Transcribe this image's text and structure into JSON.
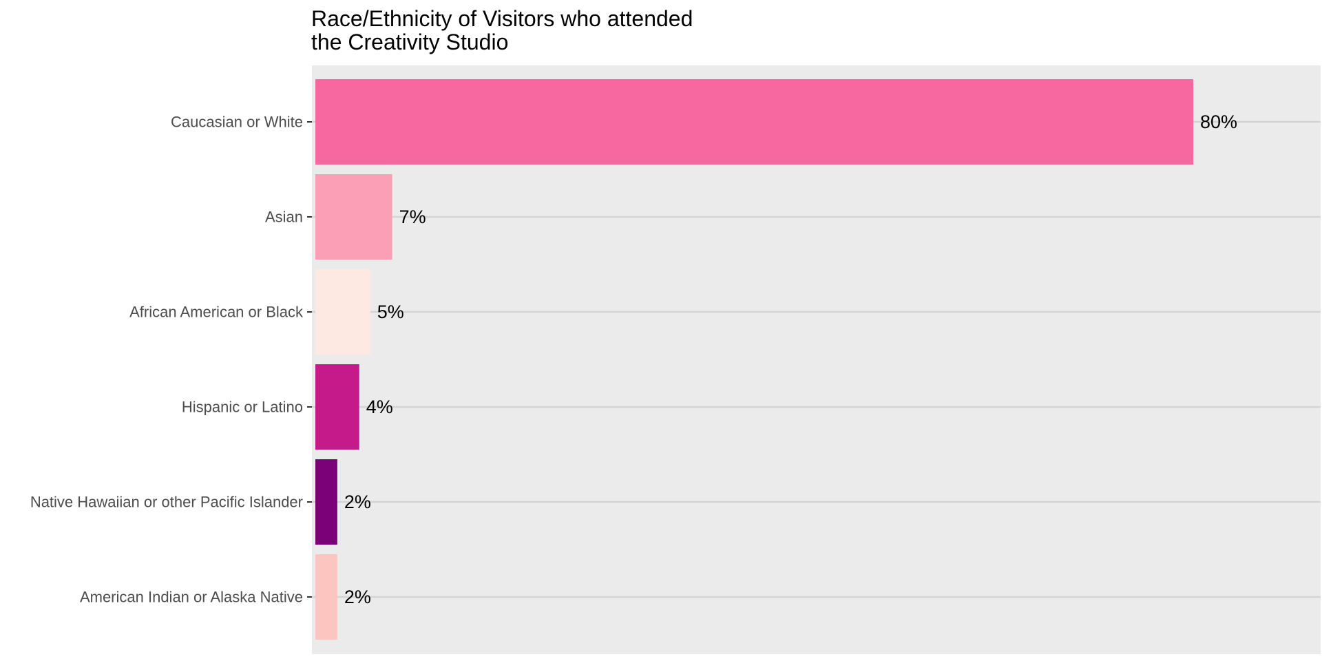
{
  "chart_data": {
    "type": "bar",
    "orientation": "horizontal",
    "title_lines": [
      "Race/Ethnicity of Visitors who attended",
      "the Creativity Studio"
    ],
    "xlabel": "",
    "ylabel": "",
    "xlim": [
      0,
      89.3
    ],
    "grid": true,
    "legend": "none",
    "background_color": "#ebebeb",
    "gridline_color": "#d4d4d4",
    "categories": [
      "Caucasian or White",
      "Asian",
      "African American or Black",
      "Hispanic or Latino",
      "Native Hawaiian or other Pacific Islander",
      "American Indian or Alaska Native"
    ],
    "values": [
      80,
      7,
      5,
      4,
      2,
      2
    ],
    "value_labels": [
      "80%",
      "7%",
      "5%",
      "4%",
      "2%",
      "2%"
    ],
    "colors": [
      "#f768a1",
      "#fa9fb5",
      "#fde9e2",
      "#c51b8a",
      "#7a0177",
      "#fcc5c0"
    ]
  }
}
